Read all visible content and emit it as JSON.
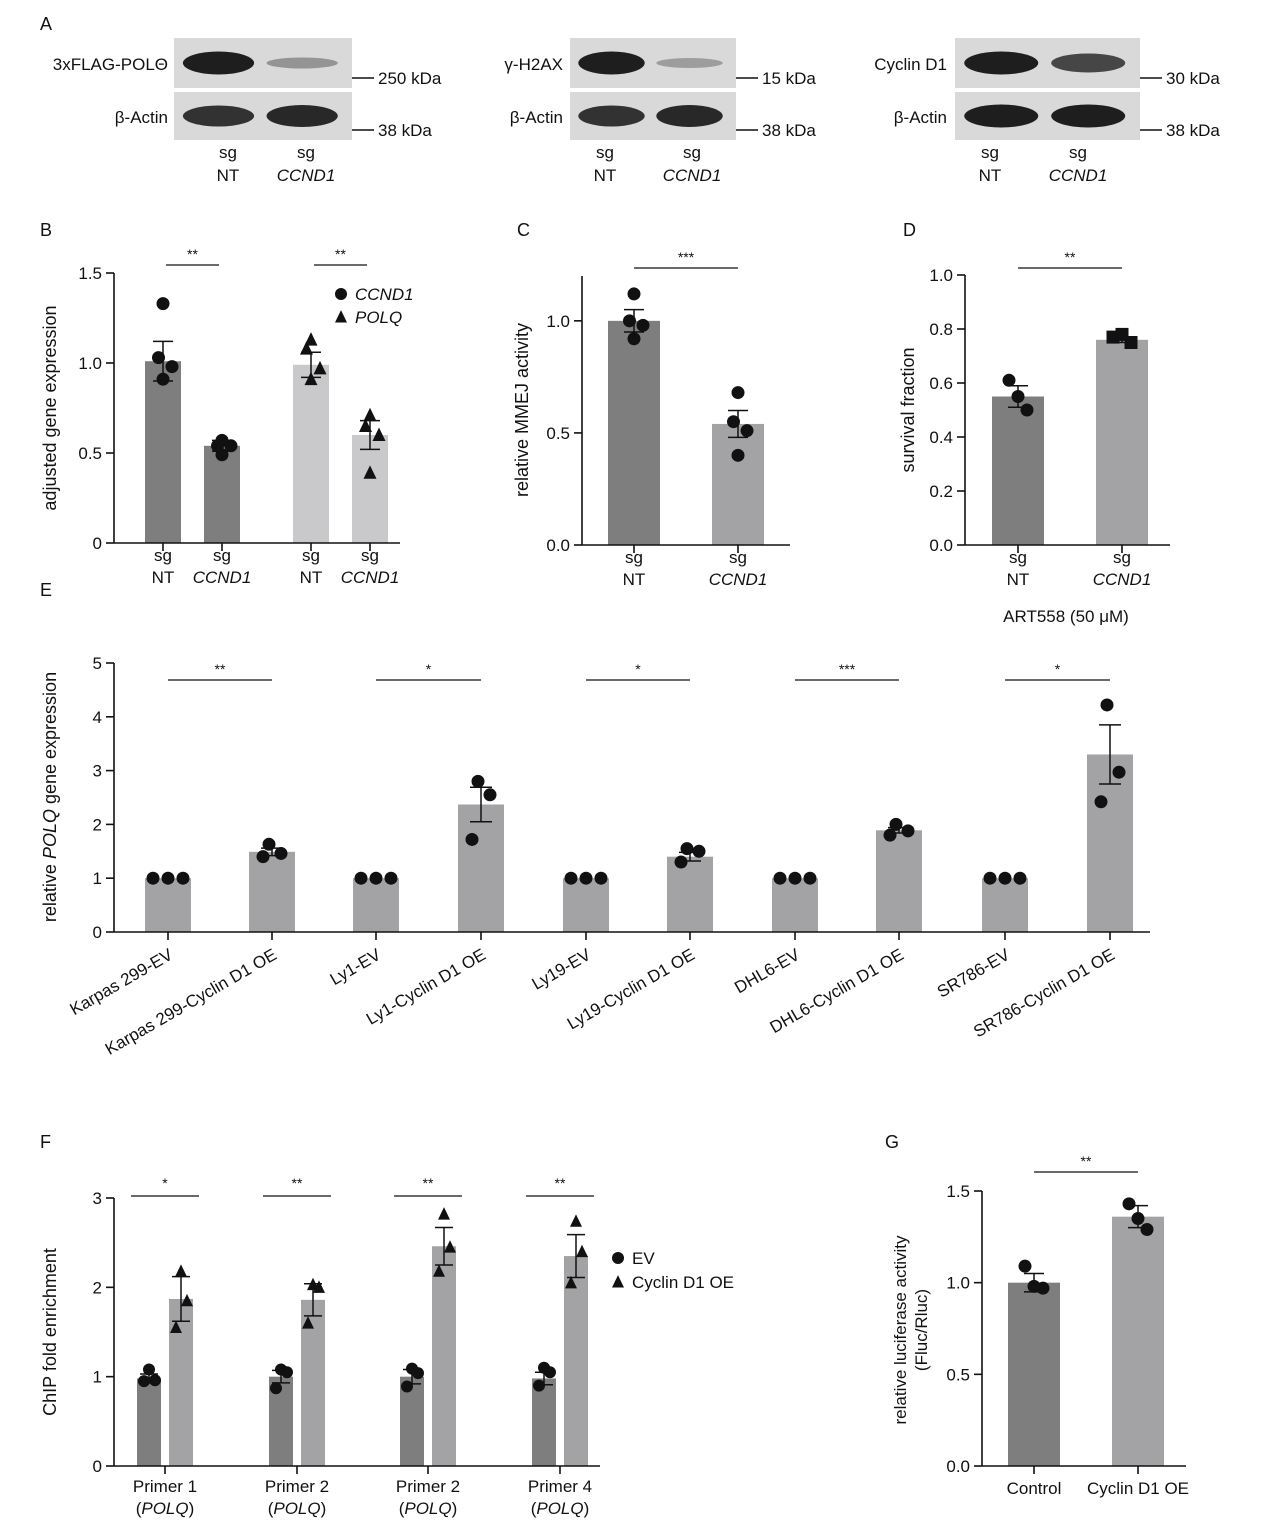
{
  "panel_letters": [
    "A",
    "B",
    "C",
    "D",
    "E",
    "F",
    "G"
  ],
  "colors": {
    "dark_bar": "#7e7e7e",
    "mid_bar": "#a3a3a6",
    "light_bar": "#c9c9cb",
    "ink": "#111111",
    "blot_bg": "#d9d9d9",
    "blot_band": "#141414"
  },
  "panel_a": {
    "blots": [
      {
        "top_label": "3xFLAG-POLΘ",
        "top_marker": "250 kDa",
        "bottom_label": "β-Actin",
        "bottom_marker": "38 kDa",
        "top_band_intensity": [
          0.95,
          0.35
        ],
        "bottom_band_intensity": [
          0.85,
          0.9
        ]
      },
      {
        "top_label": "γ-H2AX",
        "top_marker": "15 kDa",
        "bottom_label": "β-Actin",
        "bottom_marker": "38 kDa",
        "top_band_intensity": [
          0.95,
          0.3
        ],
        "bottom_band_intensity": [
          0.85,
          0.9
        ]
      },
      {
        "top_label": "Cyclin D1",
        "top_marker": "30 kDa",
        "bottom_label": "β-Actin",
        "bottom_marker": "38 kDa",
        "top_band_intensity": [
          0.95,
          0.75
        ],
        "bottom_band_intensity": [
          0.95,
          0.95
        ]
      }
    ],
    "lane_line1": [
      "sg",
      "sg"
    ],
    "lane_line2": [
      "NT",
      "CCND1"
    ]
  },
  "chart_data": [
    {
      "panel": "B",
      "type": "bar",
      "ylabel": "adjusted gene expression",
      "ylim": [
        0,
        1.5
      ],
      "yticks": [
        "0",
        "0.5",
        "1.0",
        "1.5"
      ],
      "ytick_values": [
        0,
        0.5,
        1.0,
        1.5
      ],
      "legend": [
        {
          "marker": "circle",
          "label": "CCND1"
        },
        {
          "marker": "triangle",
          "label": "POLQ"
        }
      ],
      "bars": [
        {
          "line1": "sg",
          "line2": "NT",
          "value": 1.01,
          "err": 0.11,
          "points": [
            1.33,
            1.03,
            0.98,
            0.91
          ],
          "marker": "circle",
          "shade": "dark"
        },
        {
          "line1": "sg",
          "line2": "CCND1",
          "value": 0.54,
          "err": 0.03,
          "points": [
            0.57,
            0.54,
            0.54,
            0.49
          ],
          "marker": "circle",
          "shade": "dark"
        },
        {
          "line1": "sg",
          "line2": "NT",
          "value": 0.99,
          "err": 0.07,
          "points": [
            1.13,
            1.08,
            0.97,
            0.91
          ],
          "marker": "triangle",
          "shade": "light"
        },
        {
          "line1": "sg",
          "line2": "CCND1",
          "value": 0.6,
          "err": 0.08,
          "points": [
            0.71,
            0.65,
            0.6,
            0.39
          ],
          "marker": "triangle",
          "shade": "light"
        }
      ],
      "significance": [
        {
          "from": 0,
          "to": 1,
          "label": "**"
        },
        {
          "from": 2,
          "to": 3,
          "label": "**"
        }
      ]
    },
    {
      "panel": "C",
      "type": "bar",
      "ylabel": "relative MMEJ activity",
      "ylim": [
        0,
        1.2
      ],
      "yticks": [
        "0.0",
        "0.5",
        "1.0"
      ],
      "ytick_values": [
        0,
        0.5,
        1.0
      ],
      "bars": [
        {
          "line1": "sg",
          "line2": "NT",
          "value": 1.0,
          "err": 0.05,
          "points": [
            1.12,
            1.0,
            0.98,
            0.92
          ],
          "marker": "circle",
          "shade": "dark"
        },
        {
          "line1": "sg",
          "line2": "CCND1",
          "value": 0.54,
          "err": 0.06,
          "points": [
            0.68,
            0.55,
            0.51,
            0.4
          ],
          "marker": "circle",
          "shade": "mid"
        }
      ],
      "significance": [
        {
          "from": 0,
          "to": 1,
          "label": "***"
        }
      ]
    },
    {
      "panel": "D",
      "type": "bar",
      "ylabel": "survival fraction",
      "xlabel": "ART558 (50 μM)",
      "ylim": [
        0,
        1.0
      ],
      "yticks": [
        "0.0",
        "0.2",
        "0.4",
        "0.6",
        "0.8",
        "1.0"
      ],
      "ytick_values": [
        0,
        0.2,
        0.4,
        0.6,
        0.8,
        1.0
      ],
      "bars": [
        {
          "line1": "sg",
          "line2": "NT",
          "value": 0.55,
          "err": 0.04,
          "points": [
            0.61,
            0.55,
            0.5
          ],
          "marker": "circle",
          "shade": "dark"
        },
        {
          "line1": "sg",
          "line2": "CCND1",
          "value": 0.76,
          "err": 0.01,
          "points": [
            0.77,
            0.78,
            0.75
          ],
          "marker": "square",
          "shade": "mid"
        }
      ],
      "significance": [
        {
          "from": 0,
          "to": 1,
          "label": "**"
        }
      ]
    },
    {
      "panel": "E",
      "type": "bar",
      "ylabel_parts": [
        "relative ",
        "POLQ",
        " gene expression"
      ],
      "ylim": [
        0,
        5
      ],
      "yticks": [
        "0",
        "1",
        "2",
        "3",
        "4",
        "5"
      ],
      "ytick_values": [
        0,
        1,
        2,
        3,
        4,
        5
      ],
      "categories": [
        "Karpas 299-EV",
        "Karpas 299-Cyclin D1 OE",
        "Ly1-EV",
        "Ly1-Cyclin D1 OE",
        "Ly19-EV",
        "Ly19-Cyclin D1 OE",
        "DHL6-EV",
        "DHL6-Cyclin D1 OE",
        "SR786-EV",
        "SR786-Cyclin D1 OE"
      ],
      "values": [
        1,
        1.49,
        1,
        2.37,
        1,
        1.4,
        1,
        1.89,
        1,
        3.3
      ],
      "errors": [
        0,
        0.07,
        0,
        0.32,
        0,
        0.08,
        0,
        0.05,
        0,
        0.55
      ],
      "points": [
        [
          1,
          1,
          1
        ],
        [
          1.63,
          1.46,
          1.4
        ],
        [
          1,
          1,
          1
        ],
        [
          2.8,
          2.55,
          1.72
        ],
        [
          1,
          1,
          1
        ],
        [
          1.55,
          1.5,
          1.3
        ],
        [
          1,
          1,
          1
        ],
        [
          2.0,
          1.88,
          1.8
        ],
        [
          1,
          1,
          1
        ],
        [
          4.22,
          2.97,
          2.42
        ]
      ],
      "significance": [
        {
          "from": 0,
          "to": 1,
          "label": "**"
        },
        {
          "from": 2,
          "to": 3,
          "label": "*"
        },
        {
          "from": 4,
          "to": 5,
          "label": "*"
        },
        {
          "from": 6,
          "to": 7,
          "label": "***"
        },
        {
          "from": 8,
          "to": 9,
          "label": "*"
        }
      ]
    },
    {
      "panel": "F",
      "type": "bar",
      "ylabel": "ChIP fold enrichment",
      "ylim": [
        0,
        3
      ],
      "yticks": [
        "0",
        "1",
        "2",
        "3"
      ],
      "ytick_values": [
        0,
        1,
        2,
        3
      ],
      "legend": [
        {
          "marker": "circle",
          "label": "EV"
        },
        {
          "marker": "triangle",
          "label": "Cyclin D1 OE"
        }
      ],
      "groups": [
        {
          "line1": "Primer 1",
          "line2": "POLQ",
          "ev": 0.98,
          "ev_err": 0.05,
          "ev_points": [
            1.08,
            0.96,
            0.95
          ],
          "oe": 1.87,
          "oe_err": 0.25,
          "oe_points": [
            2.18,
            1.85,
            1.55
          ],
          "label": "*"
        },
        {
          "line1": "Primer 2",
          "line2": "POLQ",
          "ev": 1.0,
          "ev_err": 0.07,
          "ev_points": [
            1.08,
            1.05,
            0.87
          ],
          "oe": 1.86,
          "oe_err": 0.18,
          "oe_points": [
            2.03,
            2.0,
            1.6
          ],
          "label": "**"
        },
        {
          "line1": "Primer 2",
          "line2": "POLQ",
          "ev": 1.0,
          "ev_err": 0.08,
          "ev_points": [
            1.09,
            1.04,
            0.89
          ],
          "oe": 2.46,
          "oe_err": 0.21,
          "oe_points": [
            2.82,
            2.45,
            2.18
          ],
          "label": "**"
        },
        {
          "line1": "Primer 4",
          "line2": "POLQ",
          "ev": 0.98,
          "ev_err": 0.07,
          "ev_points": [
            1.1,
            1.05,
            0.9
          ],
          "oe": 2.35,
          "oe_err": 0.24,
          "oe_points": [
            2.74,
            2.4,
            2.05
          ],
          "label": "**"
        }
      ]
    },
    {
      "panel": "G",
      "type": "bar",
      "ylabel": "relative luciferase activity",
      "ylabel2": "(Fluc/Rluc)",
      "ylim": [
        0,
        1.5
      ],
      "yticks": [
        "0.0",
        "0.5",
        "1.0",
        "1.5"
      ],
      "ytick_values": [
        0,
        0.5,
        1.0,
        1.5
      ],
      "bars": [
        {
          "line1": "Control",
          "value": 1.0,
          "err": 0.05,
          "points": [
            1.09,
            0.98,
            0.97
          ],
          "marker": "circle",
          "shade": "dark"
        },
        {
          "line1": "Cyclin D1 OE",
          "value": 1.36,
          "err": 0.06,
          "points": [
            1.43,
            1.35,
            1.29
          ],
          "marker": "circle",
          "shade": "mid"
        }
      ],
      "significance": [
        {
          "from": 0,
          "to": 1,
          "label": "**"
        }
      ]
    }
  ]
}
